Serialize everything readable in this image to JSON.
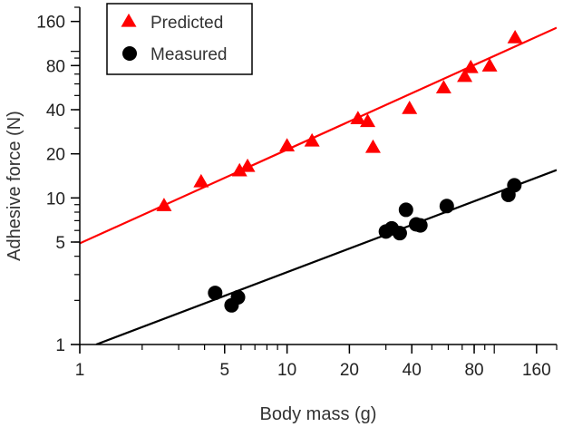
{
  "chart_data": {
    "type": "scatter",
    "x_scale": "log",
    "y_scale": "log",
    "xlabel": "Body mass (g)",
    "ylabel": "Adhesive force (N)",
    "xlim": [
      1,
      200
    ],
    "ylim": [
      1,
      200
    ],
    "x_ticks": [
      1,
      5,
      10,
      20,
      40,
      80,
      160
    ],
    "y_ticks": [
      1,
      5,
      10,
      20,
      40,
      80,
      160
    ],
    "grid": false,
    "legend_position": "top-left",
    "series": [
      {
        "name": "Predicted",
        "marker": "triangle",
        "color": "#ff0000",
        "points": [
          {
            "x": 2.55,
            "y": 8.8
          },
          {
            "x": 3.85,
            "y": 12.8
          },
          {
            "x": 5.9,
            "y": 15.2
          },
          {
            "x": 6.45,
            "y": 16.3
          },
          {
            "x": 10.0,
            "y": 22.5
          },
          {
            "x": 13.2,
            "y": 24.3
          },
          {
            "x": 22.0,
            "y": 34.5
          },
          {
            "x": 24.5,
            "y": 33.0
          },
          {
            "x": 26.0,
            "y": 22.0
          },
          {
            "x": 39.0,
            "y": 40.5
          },
          {
            "x": 57.0,
            "y": 56.0
          },
          {
            "x": 72.0,
            "y": 67.0
          },
          {
            "x": 77.0,
            "y": 77.0
          },
          {
            "x": 95.0,
            "y": 79.0
          },
          {
            "x": 126.0,
            "y": 123.0
          }
        ],
        "fit": {
          "x": [
            1,
            200
          ],
          "y": [
            4.9,
            145
          ]
        }
      },
      {
        "name": "Measured",
        "marker": "circle",
        "color": "#000000",
        "points": [
          {
            "x": 4.5,
            "y": 2.25
          },
          {
            "x": 5.4,
            "y": 1.85
          },
          {
            "x": 5.8,
            "y": 2.1
          },
          {
            "x": 30.0,
            "y": 5.9
          },
          {
            "x": 32.0,
            "y": 6.2
          },
          {
            "x": 35.0,
            "y": 5.75
          },
          {
            "x": 37.5,
            "y": 8.3
          },
          {
            "x": 42.0,
            "y": 6.6
          },
          {
            "x": 44.0,
            "y": 6.5
          },
          {
            "x": 59.0,
            "y": 8.8
          },
          {
            "x": 117.0,
            "y": 10.5
          },
          {
            "x": 125.0,
            "y": 12.2
          }
        ],
        "fit": {
          "x": [
            1.2,
            200
          ],
          "y": [
            1.0,
            15.5
          ]
        }
      }
    ]
  }
}
